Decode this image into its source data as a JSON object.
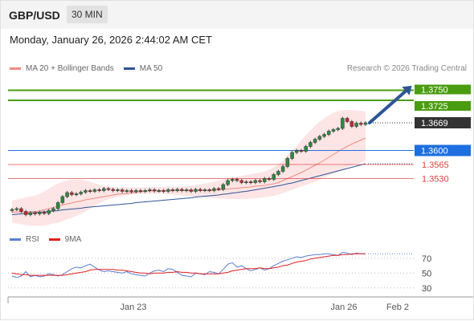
{
  "header": {
    "symbol": "GBP/USD",
    "timeframe": "30 MIN"
  },
  "datetime": "Monday, January 26, 2026 2:44:02 AM CET",
  "legend": {
    "items": [
      {
        "label": "MA 20 + Bollinger Bands",
        "color": "#f28b82"
      },
      {
        "label": "MA 50",
        "color": "#2e5496"
      }
    ],
    "credit": "Research © 2026 Trading Central"
  },
  "rsi_legend": {
    "items": [
      {
        "label": "RSI",
        "color": "#5b7fd1"
      },
      {
        "label": "9MA",
        "color": "#e02020"
      }
    ]
  },
  "colors": {
    "resistance": "#4a9c10",
    "pivot": "#1e6fe0",
    "support": "#e34040",
    "current": "#333333",
    "arrow": "#2e5496",
    "band_fill": "#fde0e0"
  },
  "chart_data": [
    {
      "type": "candlestick",
      "ylim": [
        1.3395,
        1.3785
      ],
      "x_ticks": [
        "Jan 23",
        "Jan 26",
        "Feb 2"
      ],
      "levels": [
        {
          "label": "1.3750",
          "value": 1.375,
          "kind": "resistance"
        },
        {
          "label": "1.3725",
          "value": 1.3725,
          "kind": "resistance"
        },
        {
          "label": "1.3669",
          "value": 1.3669,
          "kind": "current"
        },
        {
          "label": "1.3600",
          "value": 1.36,
          "kind": "pivot"
        },
        {
          "label": "1.3565",
          "value": 1.3565,
          "kind": "support"
        },
        {
          "label": "1.3530",
          "value": 1.353,
          "kind": "support"
        }
      ],
      "close": [
        1.3453,
        1.3455,
        1.3448,
        1.344,
        1.3445,
        1.3442,
        1.3446,
        1.3443,
        1.345,
        1.3455,
        1.347,
        1.3485,
        1.3495,
        1.349,
        1.3492,
        1.3496,
        1.35,
        1.3498,
        1.3502,
        1.35,
        1.3505,
        1.3503,
        1.35,
        1.3502,
        1.3498,
        1.35,
        1.3497,
        1.35,
        1.3498,
        1.35,
        1.3502,
        1.3499,
        1.35,
        1.3498,
        1.3502,
        1.35,
        1.3503,
        1.35,
        1.3502,
        1.3498,
        1.3503,
        1.35,
        1.3502,
        1.35,
        1.3505,
        1.3503,
        1.3515,
        1.3525,
        1.3528,
        1.3525,
        1.352,
        1.3522,
        1.352,
        1.3525,
        1.3522,
        1.353,
        1.3528,
        1.354,
        1.3548,
        1.356,
        1.358,
        1.3595,
        1.36,
        1.3598,
        1.361,
        1.362,
        1.3628,
        1.3635,
        1.364,
        1.3648,
        1.3652,
        1.3655,
        1.368,
        1.3672,
        1.366,
        1.3668,
        1.3665,
        1.3669
      ],
      "ma20": [
        1.3446,
        1.3447,
        1.3447,
        1.3447,
        1.3447,
        1.3448,
        1.3449,
        1.3452,
        1.3455,
        1.3458,
        1.3461,
        1.3464,
        1.3467,
        1.3469,
        1.3472,
        1.3474,
        1.3477,
        1.3479,
        1.3481,
        1.3483,
        1.3485,
        1.3487,
        1.3489,
        1.3491,
        1.3492,
        1.3493,
        1.3494,
        1.3496,
        1.3497,
        1.3498,
        1.3499,
        1.35,
        1.35,
        1.35,
        1.35,
        1.35,
        1.35,
        1.35,
        1.35,
        1.35,
        1.35,
        1.35,
        1.35,
        1.3501,
        1.3501,
        1.3502,
        1.3503,
        1.3504,
        1.3505,
        1.3506,
        1.3507,
        1.3508,
        1.3509,
        1.3511,
        1.3512,
        1.3513,
        1.3515,
        1.3517,
        1.352,
        1.3525,
        1.353,
        1.3535,
        1.354,
        1.3545,
        1.3551,
        1.3557,
        1.3563,
        1.3569,
        1.3576,
        1.3583,
        1.359,
        1.3597,
        1.3604,
        1.361,
        1.3616,
        1.3621,
        1.3626,
        1.3631
      ],
      "bb_upper": [
        1.3475,
        1.3478,
        1.348,
        1.3483,
        1.3485,
        1.3488,
        1.3492,
        1.3498,
        1.3505,
        1.3512,
        1.3518,
        1.3522,
        1.3525,
        1.3527,
        1.3528,
        1.3527,
        1.3525,
        1.3522,
        1.3518,
        1.3514,
        1.3512,
        1.351,
        1.3509,
        1.3508,
        1.3508,
        1.3508,
        1.3508,
        1.3508,
        1.3508,
        1.3508,
        1.3509,
        1.3509,
        1.3509,
        1.3509,
        1.351,
        1.351,
        1.351,
        1.351,
        1.3511,
        1.3512,
        1.3514,
        1.3516,
        1.3518,
        1.352,
        1.3522,
        1.3525,
        1.3527,
        1.353,
        1.3533,
        1.3535,
        1.3537,
        1.3539,
        1.3541,
        1.3543,
        1.3545,
        1.3548,
        1.3552,
        1.3558,
        1.3565,
        1.3575,
        1.3588,
        1.36,
        1.3612,
        1.3625,
        1.3638,
        1.365,
        1.3662,
        1.3672,
        1.368,
        1.3688,
        1.3694,
        1.3698,
        1.37,
        1.3701,
        1.3701,
        1.37,
        1.3699,
        1.3697
      ],
      "bb_lower": [
        1.342,
        1.3418,
        1.3416,
        1.3414,
        1.3413,
        1.3412,
        1.3412,
        1.3413,
        1.3415,
        1.3418,
        1.342,
        1.3424,
        1.3428,
        1.3432,
        1.3437,
        1.3442,
        1.3448,
        1.3455,
        1.3462,
        1.3468,
        1.3474,
        1.3478,
        1.3481,
        1.3484,
        1.3486,
        1.3488,
        1.349,
        1.3491,
        1.3492,
        1.3492,
        1.3492,
        1.3492,
        1.3492,
        1.3492,
        1.3491,
        1.349,
        1.3489,
        1.3488,
        1.3487,
        1.3486,
        1.3485,
        1.3484,
        1.3483,
        1.3482,
        1.3481,
        1.348,
        1.348,
        1.3479,
        1.3479,
        1.3479,
        1.3479,
        1.3479,
        1.348,
        1.3481,
        1.3482,
        1.3483,
        1.3485,
        1.3487,
        1.349,
        1.3494,
        1.3498,
        1.3502,
        1.3506,
        1.351,
        1.3514,
        1.3518,
        1.3522,
        1.3527,
        1.3532,
        1.3537,
        1.3542,
        1.3547,
        1.3552,
        1.3557,
        1.3562,
        1.3566,
        1.357,
        1.3574
      ],
      "ma50": [
        1.344,
        1.3441,
        1.3442,
        1.3443,
        1.3444,
        1.3445,
        1.3446,
        1.3447,
        1.3448,
        1.3449,
        1.345,
        1.3452,
        1.3453,
        1.3454,
        1.3455,
        1.3456,
        1.3458,
        1.3459,
        1.346,
        1.3461,
        1.3462,
        1.3463,
        1.3464,
        1.3465,
        1.3466,
        1.3467,
        1.3468,
        1.347,
        1.3471,
        1.3472,
        1.3473,
        1.3474,
        1.3475,
        1.3476,
        1.3477,
        1.3478,
        1.3479,
        1.348,
        1.3481,
        1.3482,
        1.3484,
        1.3485,
        1.3486,
        1.3487,
        1.3488,
        1.3489,
        1.3491,
        1.3492,
        1.3494,
        1.3495,
        1.3497,
        1.3498,
        1.35,
        1.3502,
        1.3504,
        1.3506,
        1.3508,
        1.351,
        1.3512,
        1.3514,
        1.3517,
        1.3519,
        1.3522,
        1.3525,
        1.3528,
        1.3531,
        1.3534,
        1.3537,
        1.354,
        1.3543,
        1.3546,
        1.3549,
        1.3552,
        1.3555,
        1.3558,
        1.3561,
        1.3564,
        1.3567
      ]
    },
    {
      "type": "line",
      "title": "RSI",
      "ylim": [
        20,
        85
      ],
      "y_ticks": [
        70,
        50,
        30
      ],
      "series": [
        {
          "name": "RSI",
          "values": [
            46,
            44,
            46,
            52,
            45,
            47,
            45,
            46,
            49,
            48,
            46,
            48,
            52,
            56,
            58,
            57,
            60,
            62,
            58,
            54,
            52,
            53,
            52,
            51,
            50,
            52,
            49,
            48,
            47,
            46,
            50,
            53,
            54,
            52,
            56,
            55,
            51,
            47,
            46,
            45,
            50,
            49,
            48,
            52,
            51,
            49,
            55,
            62,
            64,
            58,
            60,
            56,
            53,
            55,
            57,
            54,
            56,
            60,
            63,
            66,
            68,
            70,
            72,
            71,
            73,
            74,
            75,
            75,
            76,
            76,
            75,
            74,
            78,
            77,
            75,
            77,
            76,
            76
          ]
        },
        {
          "name": "9MA",
          "values": [
            50,
            49,
            48,
            48,
            47,
            47,
            47,
            47,
            47,
            47,
            47,
            47,
            48,
            49,
            50,
            51,
            52,
            54,
            55,
            55,
            55,
            55,
            55,
            54,
            54,
            53,
            52,
            51,
            50,
            50,
            49,
            50,
            50,
            50,
            51,
            51,
            52,
            51,
            51,
            50,
            50,
            49,
            49,
            49,
            49,
            49,
            50,
            51,
            53,
            54,
            55,
            56,
            56,
            56,
            57,
            56,
            56,
            57,
            58,
            60,
            61,
            63,
            65,
            66,
            67,
            69,
            70,
            71,
            72,
            73,
            74,
            74,
            75,
            75,
            76,
            76,
            76,
            76
          ]
        }
      ]
    }
  ]
}
